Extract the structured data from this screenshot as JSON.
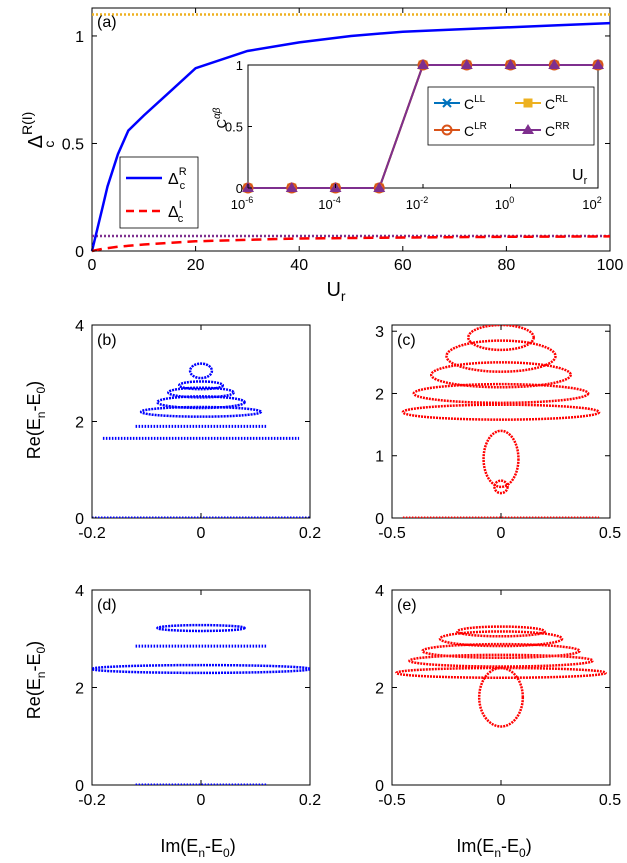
{
  "chart_data": [
    {
      "panel": "a",
      "type": "line",
      "panel_label": "(a)",
      "xlabel": "U",
      "xlabel_sub": "r",
      "ylabel": "Δ",
      "ylabel_sub": "c",
      "ylabel_sup": "R(I)",
      "xlim": [
        0,
        100
      ],
      "ylim": [
        0,
        1.13
      ],
      "xticks": [
        0,
        20,
        40,
        60,
        80,
        100
      ],
      "yticks": [
        0,
        0.5,
        1
      ],
      "ytick_labels": [
        "0",
        "0.5",
        "1"
      ],
      "legend_position": "lower-left",
      "hlines": [
        {
          "y": 1.1,
          "color": "#EDB120",
          "style": "dotted"
        },
        {
          "y": 0.07,
          "color": "#7E2F8E",
          "style": "dotted"
        }
      ],
      "series": [
        {
          "name": "Δ",
          "name_sub": "c",
          "name_sup": "R",
          "color": "#0000FF",
          "style": "solid",
          "x": [
            0,
            1,
            2,
            3,
            5,
            7,
            10,
            15,
            20,
            30,
            40,
            50,
            60,
            70,
            80,
            90,
            100
          ],
          "y": [
            0,
            0.1,
            0.2,
            0.3,
            0.45,
            0.56,
            0.63,
            0.74,
            0.85,
            0.93,
            0.97,
            1.0,
            1.02,
            1.03,
            1.04,
            1.05,
            1.06
          ]
        },
        {
          "name": "Δ",
          "name_sub": "c",
          "name_sup": "I",
          "color": "#FF0000",
          "style": "dashed",
          "x": [
            0,
            2,
            5,
            10,
            20,
            30,
            40,
            60,
            80,
            100
          ],
          "y": [
            0,
            0.01,
            0.02,
            0.03,
            0.045,
            0.052,
            0.058,
            0.063,
            0.066,
            0.068
          ]
        }
      ],
      "inset": {
        "type": "line",
        "ylabel": "C",
        "ylabel_sup": "αβ",
        "xlabel": "U",
        "xlabel_sub": "r",
        "xscale": "log",
        "xlim": [
          1e-06,
          100
        ],
        "ylim": [
          0,
          1
        ],
        "xtick_labels": [
          "10",
          "10",
          "10",
          "10",
          "10"
        ],
        "xtick_exponents": [
          "-6",
          "-4",
          "-2",
          "0",
          "2"
        ],
        "xtick_values": [
          1e-06,
          0.0001,
          0.01,
          1,
          100
        ],
        "ytick_labels": [
          "0",
          "0.5",
          "1"
        ],
        "yticks": [
          0,
          0.5,
          1
        ],
        "legend_position": "top-right",
        "x": [
          1e-06,
          1e-05,
          0.0001,
          0.001,
          0.01,
          0.1,
          1,
          10,
          100
        ],
        "series": [
          {
            "name": "C",
            "name_sup": "LL",
            "color": "#0072BD",
            "marker": "x",
            "y": [
              0,
              0,
              0,
              0,
              1,
              1,
              1,
              1,
              1
            ]
          },
          {
            "name": "C",
            "name_sup": "RL",
            "color": "#EDB120",
            "marker": "square",
            "y": [
              0,
              0,
              0,
              0,
              1,
              1,
              1,
              1,
              1
            ]
          },
          {
            "name": "C",
            "name_sup": "LR",
            "color": "#D95319",
            "marker": "circle",
            "y": [
              0,
              0,
              0,
              0,
              1,
              1,
              1,
              1,
              1
            ]
          },
          {
            "name": "C",
            "name_sup": "RR",
            "color": "#7E2F8E",
            "marker": "triangle",
            "y": [
              0,
              0,
              0,
              0,
              1,
              1,
              1,
              1,
              1
            ]
          }
        ]
      }
    },
    {
      "panel": "b",
      "type": "scatter",
      "panel_label": "(b)",
      "ylabel": "Re(E",
      "ylabel_sub": "n",
      "ylabel_tail": "-E",
      "ylabel_sub2": "0",
      "ylabel_end": ")",
      "xlim": [
        -0.2,
        0.2
      ],
      "ylim": [
        0,
        4
      ],
      "xticks": [
        -0.2,
        0,
        0.2
      ],
      "xtick_labels": [
        "-0.2",
        "0",
        "0.2"
      ],
      "yticks": [
        0,
        2,
        4
      ],
      "ytick_labels": [
        "0",
        "2",
        "4"
      ],
      "color": "#0000FF",
      "rows": [
        {
          "y": 0,
          "x_min": -0.2,
          "x_max": 0.2
        },
        {
          "y": 1.65,
          "x_min": -0.18,
          "x_max": 0.18
        },
        {
          "y": 1.9,
          "x_min": -0.12,
          "x_max": 0.12
        }
      ],
      "loops": [
        {
          "cx": 0,
          "cy": 2.2,
          "rx": 0.11,
          "ry": 0.1
        },
        {
          "cx": 0,
          "cy": 2.4,
          "rx": 0.08,
          "ry": 0.12
        },
        {
          "cx": 0,
          "cy": 2.6,
          "rx": 0.06,
          "ry": 0.1
        },
        {
          "cx": 0,
          "cy": 2.75,
          "rx": 0.04,
          "ry": 0.08
        },
        {
          "cx": 0,
          "cy": 3.05,
          "rx": 0.02,
          "ry": 0.15
        }
      ]
    },
    {
      "panel": "c",
      "type": "scatter",
      "panel_label": "(c)",
      "xlim": [
        -0.5,
        0.5
      ],
      "ylim": [
        0,
        3.1
      ],
      "xticks": [
        -0.5,
        0,
        0.5
      ],
      "xtick_labels": [
        "-0.5",
        "0",
        "0.5"
      ],
      "yticks": [
        0,
        1,
        2,
        3
      ],
      "ytick_labels": [
        "0",
        "1",
        "2",
        "3"
      ],
      "color": "#FF0000",
      "rows": [
        {
          "y": 0,
          "x_min": -0.45,
          "x_max": 0.45
        }
      ],
      "loops": [
        {
          "cx": 0,
          "cy": 1.7,
          "rx": 0.45,
          "ry": 0.12
        },
        {
          "cx": 0,
          "cy": 2.0,
          "rx": 0.4,
          "ry": 0.15
        },
        {
          "cx": 0,
          "cy": 2.3,
          "rx": 0.32,
          "ry": 0.2
        },
        {
          "cx": 0,
          "cy": 2.6,
          "rx": 0.25,
          "ry": 0.25
        },
        {
          "cx": 0,
          "cy": 2.9,
          "rx": 0.15,
          "ry": 0.2
        },
        {
          "cx": 0,
          "cy": 0.95,
          "rx": 0.08,
          "ry": 0.45
        },
        {
          "cx": 0,
          "cy": 0.5,
          "rx": 0.03,
          "ry": 0.1
        }
      ]
    },
    {
      "panel": "d",
      "type": "scatter",
      "panel_label": "(d)",
      "xlabel": "Im(E",
      "xlabel_sub": "n",
      "xlabel_tail": "-E",
      "xlabel_sub2": "0",
      "xlabel_end": ")",
      "ylabel": "Re(E",
      "ylabel_sub": "n",
      "ylabel_tail": "-E",
      "ylabel_sub2": "0",
      "ylabel_end": ")",
      "xlim": [
        -0.2,
        0.2
      ],
      "ylim": [
        0,
        4
      ],
      "xticks": [
        -0.2,
        0,
        0.2
      ],
      "xtick_labels": [
        "-0.2",
        "0",
        "0.2"
      ],
      "yticks": [
        0,
        2,
        4
      ],
      "ytick_labels": [
        "0",
        "2",
        "4"
      ],
      "color": "#0000FF",
      "rows": [
        {
          "y": 0,
          "x_min": -0.12,
          "x_max": 0.12
        },
        {
          "y": 2.85,
          "x_min": -0.12,
          "x_max": 0.12
        }
      ],
      "loops": [
        {
          "cx": 0,
          "cy": 2.38,
          "rx": 0.2,
          "ry": 0.08
        },
        {
          "cx": 0,
          "cy": 3.22,
          "rx": 0.08,
          "ry": 0.06
        }
      ]
    },
    {
      "panel": "e",
      "type": "scatter",
      "panel_label": "(e)",
      "xlabel": "Im(E",
      "xlabel_sub": "n",
      "xlabel_tail": "-E",
      "xlabel_sub2": "0",
      "xlabel_end": ")",
      "xlim": [
        -0.5,
        0.5
      ],
      "ylim": [
        0,
        4
      ],
      "xticks": [
        -0.5,
        0,
        0.5
      ],
      "xtick_labels": [
        "-0.5",
        "0",
        "0.5"
      ],
      "yticks": [
        0,
        2,
        4
      ],
      "ytick_labels": [
        "0",
        "2",
        "4"
      ],
      "color": "#FF0000",
      "rows": [],
      "loops": [
        {
          "cx": 0,
          "cy": 2.3,
          "rx": 0.48,
          "ry": 0.1
        },
        {
          "cx": 0,
          "cy": 2.55,
          "rx": 0.42,
          "ry": 0.12
        },
        {
          "cx": 0,
          "cy": 2.75,
          "rx": 0.36,
          "ry": 0.14
        },
        {
          "cx": 0,
          "cy": 3.0,
          "rx": 0.28,
          "ry": 0.15
        },
        {
          "cx": 0,
          "cy": 3.15,
          "rx": 0.2,
          "ry": 0.1
        },
        {
          "cx": 0,
          "cy": 1.8,
          "rx": 0.1,
          "ry": 0.6
        }
      ]
    }
  ]
}
